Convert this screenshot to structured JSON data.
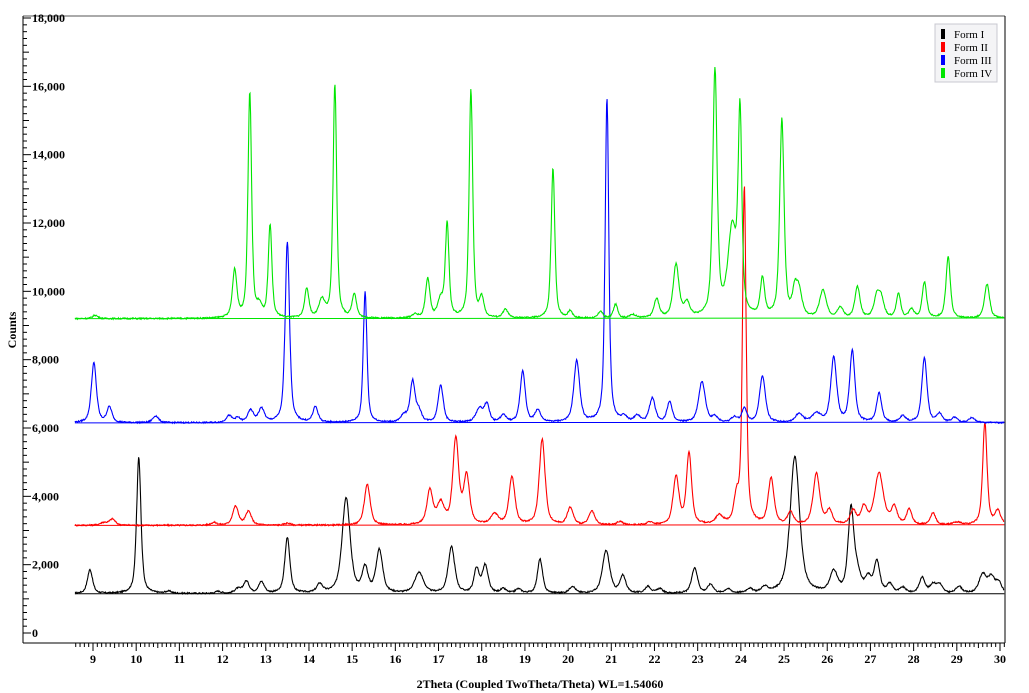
{
  "chart_data": {
    "type": "line",
    "title": "",
    "xlabel": "2Theta (Coupled TwoTheta/Theta) WL=1.54060",
    "ylabel": "Counts",
    "xlim": [
      8.58,
      30.12
    ],
    "ylim": [
      0,
      18000
    ],
    "x_ticks": [
      9,
      10,
      11,
      12,
      13,
      14,
      15,
      16,
      17,
      18,
      19,
      20,
      21,
      22,
      23,
      24,
      25,
      26,
      27,
      28,
      29,
      30
    ],
    "y_ticks": [
      0,
      2000,
      4000,
      6000,
      8000,
      10000,
      12000,
      14000,
      16000,
      18000
    ],
    "y_tick_labels": [
      "0",
      "2,000",
      "4,000",
      "6,000",
      "8,000",
      "10,000",
      "12,000",
      "14,000",
      "16,000",
      "18,000"
    ],
    "grid": false,
    "legend_position": "top-right",
    "series": [
      {
        "name": "Form I",
        "color": "#000000",
        "baseline": 1150,
        "peaks": [
          [
            8.93,
            700,
            0.07
          ],
          [
            10.06,
            4000,
            0.06
          ],
          [
            10.75,
            60,
            0.08
          ],
          [
            11.9,
            60,
            0.08
          ],
          [
            12.35,
            130,
            0.08
          ],
          [
            12.55,
            350,
            0.08
          ],
          [
            12.9,
            330,
            0.08
          ],
          [
            13.5,
            1630,
            0.07
          ],
          [
            14.25,
            250,
            0.08
          ],
          [
            14.86,
            2800,
            0.11
          ],
          [
            15.3,
            700,
            0.08
          ],
          [
            15.63,
            1250,
            0.09
          ],
          [
            16.55,
            600,
            0.12
          ],
          [
            17.3,
            1350,
            0.09
          ],
          [
            17.88,
            700,
            0.07
          ],
          [
            18.08,
            800,
            0.08
          ],
          [
            18.5,
            120,
            0.08
          ],
          [
            18.85,
            120,
            0.08
          ],
          [
            19.35,
            1000,
            0.07
          ],
          [
            20.1,
            200,
            0.08
          ],
          [
            20.88,
            1250,
            0.1
          ],
          [
            21.27,
            500,
            0.08
          ],
          [
            21.85,
            200,
            0.08
          ],
          [
            22.12,
            130,
            0.08
          ],
          [
            22.93,
            750,
            0.08
          ],
          [
            23.3,
            250,
            0.08
          ],
          [
            23.7,
            120,
            0.08
          ],
          [
            24.2,
            120,
            0.08
          ],
          [
            24.55,
            150,
            0.09
          ],
          [
            25.25,
            4000,
            0.13
          ],
          [
            26.15,
            600,
            0.1
          ],
          [
            26.55,
            2400,
            0.08
          ],
          [
            26.7,
            500,
            0.1
          ],
          [
            26.95,
            400,
            0.08
          ],
          [
            27.15,
            900,
            0.08
          ],
          [
            27.45,
            250,
            0.08
          ],
          [
            27.75,
            150,
            0.08
          ],
          [
            28.2,
            450,
            0.08
          ],
          [
            28.45,
            250,
            0.08
          ],
          [
            28.6,
            250,
            0.08
          ],
          [
            29.05,
            200,
            0.08
          ],
          [
            29.6,
            550,
            0.1
          ],
          [
            29.8,
            450,
            0.09
          ],
          [
            29.97,
            300,
            0.08
          ]
        ]
      },
      {
        "name": "Form II",
        "color": "#ff0000",
        "baseline": 3150,
        "peaks": [
          [
            9.25,
            80,
            0.1
          ],
          [
            9.45,
            180,
            0.08
          ],
          [
            11.8,
            80,
            0.08
          ],
          [
            12.3,
            550,
            0.08
          ],
          [
            12.6,
            400,
            0.08
          ],
          [
            13.5,
            60,
            0.08
          ],
          [
            15.35,
            1200,
            0.08
          ],
          [
            16.8,
            1000,
            0.08
          ],
          [
            17.05,
            600,
            0.1
          ],
          [
            17.4,
            2500,
            0.08
          ],
          [
            17.65,
            1400,
            0.08
          ],
          [
            18.3,
            300,
            0.1
          ],
          [
            18.7,
            1400,
            0.08
          ],
          [
            19.4,
            2500,
            0.08
          ],
          [
            20.05,
            500,
            0.08
          ],
          [
            20.55,
            400,
            0.08
          ],
          [
            21.2,
            100,
            0.08
          ],
          [
            21.9,
            80,
            0.08
          ],
          [
            22.5,
            1400,
            0.08
          ],
          [
            22.8,
            2100,
            0.07
          ],
          [
            23.5,
            250,
            0.1
          ],
          [
            23.9,
            700,
            0.07
          ],
          [
            24.08,
            9900,
            0.05
          ],
          [
            24.7,
            1350,
            0.08
          ],
          [
            25.15,
            350,
            0.08
          ],
          [
            25.75,
            1500,
            0.09
          ],
          [
            26.05,
            400,
            0.08
          ],
          [
            26.6,
            400,
            0.08
          ],
          [
            26.85,
            500,
            0.08
          ],
          [
            27.2,
            1500,
            0.12
          ],
          [
            27.55,
            500,
            0.08
          ],
          [
            27.9,
            450,
            0.07
          ],
          [
            28.45,
            350,
            0.07
          ],
          [
            29.0,
            80,
            0.1
          ],
          [
            29.65,
            3000,
            0.06
          ],
          [
            29.95,
            400,
            0.08
          ]
        ]
      },
      {
        "name": "Form III",
        "color": "#0000ff",
        "baseline": 6150,
        "peaks": [
          [
            9.02,
            1750,
            0.07
          ],
          [
            9.38,
            450,
            0.07
          ],
          [
            10.45,
            200,
            0.08
          ],
          [
            12.15,
            200,
            0.08
          ],
          [
            12.35,
            130,
            0.07
          ],
          [
            12.65,
            350,
            0.08
          ],
          [
            12.9,
            400,
            0.08
          ],
          [
            13.5,
            5300,
            0.06
          ],
          [
            14.15,
            450,
            0.07
          ],
          [
            15.3,
            3850,
            0.05
          ],
          [
            16.2,
            200,
            0.08
          ],
          [
            16.4,
            1200,
            0.07
          ],
          [
            16.55,
            300,
            0.07
          ],
          [
            17.05,
            1100,
            0.07
          ],
          [
            17.95,
            400,
            0.1
          ],
          [
            18.12,
            500,
            0.07
          ],
          [
            18.5,
            200,
            0.08
          ],
          [
            18.95,
            1500,
            0.07
          ],
          [
            19.3,
            350,
            0.08
          ],
          [
            20.2,
            1800,
            0.08
          ],
          [
            20.9,
            9500,
            0.05
          ],
          [
            21.3,
            150,
            0.08
          ],
          [
            21.6,
            180,
            0.08
          ],
          [
            21.95,
            700,
            0.08
          ],
          [
            22.35,
            600,
            0.07
          ],
          [
            23.1,
            1200,
            0.09
          ],
          [
            23.4,
            150,
            0.08
          ],
          [
            23.85,
            150,
            0.08
          ],
          [
            24.08,
            400,
            0.07
          ],
          [
            24.5,
            1350,
            0.08
          ],
          [
            25.35,
            250,
            0.1
          ],
          [
            25.75,
            250,
            0.12
          ],
          [
            26.15,
            1900,
            0.08
          ],
          [
            26.58,
            2100,
            0.07
          ],
          [
            27.2,
            850,
            0.07
          ],
          [
            27.75,
            180,
            0.08
          ],
          [
            28.25,
            1900,
            0.07
          ],
          [
            28.6,
            250,
            0.08
          ],
          [
            28.95,
            150,
            0.08
          ],
          [
            29.35,
            150,
            0.08
          ]
        ]
      },
      {
        "name": "Form IV",
        "color": "#00e600",
        "baseline": 9200,
        "peaks": [
          [
            9.05,
            100,
            0.07
          ],
          [
            12.28,
            1400,
            0.06
          ],
          [
            12.63,
            6600,
            0.05
          ],
          [
            12.85,
            300,
            0.07
          ],
          [
            13.1,
            2700,
            0.05
          ],
          [
            13.95,
            850,
            0.06
          ],
          [
            14.3,
            500,
            0.08
          ],
          [
            14.6,
            6850,
            0.05
          ],
          [
            15.05,
            700,
            0.06
          ],
          [
            16.45,
            100,
            0.08
          ],
          [
            16.75,
            1150,
            0.06
          ],
          [
            17.05,
            500,
            0.08
          ],
          [
            17.2,
            2750,
            0.05
          ],
          [
            17.75,
            6700,
            0.05
          ],
          [
            18.0,
            550,
            0.06
          ],
          [
            18.55,
            250,
            0.07
          ],
          [
            19.65,
            4400,
            0.05
          ],
          [
            20.05,
            200,
            0.06
          ],
          [
            20.75,
            200,
            0.06
          ],
          [
            21.1,
            400,
            0.06
          ],
          [
            21.5,
            100,
            0.08
          ],
          [
            22.05,
            550,
            0.07
          ],
          [
            22.5,
            1550,
            0.08
          ],
          [
            22.75,
            400,
            0.08
          ],
          [
            23.4,
            7200,
            0.06
          ],
          [
            23.8,
            2500,
            0.12
          ],
          [
            23.98,
            5700,
            0.05
          ],
          [
            24.5,
            1100,
            0.06
          ],
          [
            24.95,
            5800,
            0.06
          ],
          [
            25.25,
            700,
            0.07
          ],
          [
            25.35,
            700,
            0.08
          ],
          [
            25.9,
            800,
            0.09
          ],
          [
            26.3,
            300,
            0.08
          ],
          [
            26.7,
            900,
            0.07
          ],
          [
            27.15,
            600,
            0.08
          ],
          [
            27.25,
            500,
            0.08
          ],
          [
            27.65,
            700,
            0.06
          ],
          [
            27.95,
            250,
            0.07
          ],
          [
            28.25,
            1050,
            0.06
          ],
          [
            28.8,
            1800,
            0.06
          ],
          [
            29.7,
            1000,
            0.07
          ]
        ]
      }
    ]
  },
  "legend": {
    "items": [
      {
        "label": "Form I",
        "color": "#000000"
      },
      {
        "label": "Form II",
        "color": "#ff0000"
      },
      {
        "label": "Form III",
        "color": "#0000ff"
      },
      {
        "label": "Form IV",
        "color": "#00e600"
      }
    ]
  }
}
